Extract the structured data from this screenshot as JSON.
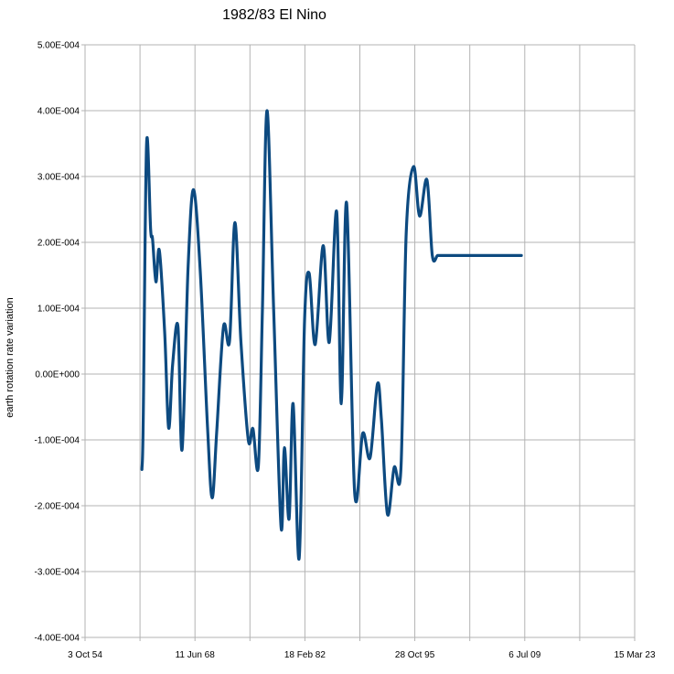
{
  "chart_data": {
    "type": "line",
    "title": "1982/83 El Nino",
    "xlabel": "",
    "ylabel": "earth rotation rate variation",
    "x_ticks": [
      "3 Oct 54",
      "11 Jun 68",
      "18 Feb 82",
      "28 Oct 95",
      "6 Jul 09",
      "15 Mar 23"
    ],
    "x_tick_dates": [
      "1954-10-03",
      "1968-06-11",
      "1982-02-18",
      "1995-10-28",
      "2009-07-06",
      "2023-03-15"
    ],
    "y_ticks": [
      "5.00E-004",
      "4.00E-004",
      "3.00E-004",
      "2.00E-004",
      "1.00E-004",
      "0.00E+000",
      "-1.00E-004",
      "-2.00E-004",
      "-3.00E-004",
      "-4.00E-004"
    ],
    "xlim": [
      "1954-10-03",
      "2023-03-15"
    ],
    "ylim": [
      -0.0004,
      0.0005
    ],
    "grid": true,
    "line_color": "#0d4a80",
    "series": [
      {
        "x": [
          "1961-11-01",
          "1962-01-01",
          "1962-06-01",
          "1962-12-01",
          "1963-03-01",
          "1963-08-01",
          "1964-01-01",
          "1964-09-01",
          "1965-03-01",
          "1965-09-01",
          "1966-05-01",
          "1966-11-01",
          "1967-08-01",
          "1968-04-01",
          "1969-02-01",
          "1970-01-01",
          "1970-08-01",
          "1971-03-01",
          "1972-01-01",
          "1972-10-01",
          "1973-06-01",
          "1974-03-01",
          "1975-02-01",
          "1975-09-01",
          "1976-05-01",
          "1976-11-01",
          "1977-06-01",
          "1978-04-01",
          "1979-03-01",
          "1979-08-01",
          "1980-03-01",
          "1980-09-01",
          "1981-06-01",
          "1982-02-01",
          "1982-09-01",
          "1983-06-01",
          "1984-06-01",
          "1985-03-01",
          "1986-02-01",
          "1986-09-01",
          "1987-05-01",
          "1988-05-01",
          "1989-05-01",
          "1990-04-01",
          "1991-03-01",
          "1991-09-01",
          "1992-06-01",
          "1993-04-01",
          "1994-02-01",
          "1994-10-01",
          "1995-09-01",
          "1996-06-01",
          "1997-05-01",
          "1998-01-01",
          "1998-09-01",
          "1999-05-01",
          "2000-05-01",
          "2001-03-01",
          "2002-04-01",
          "2003-04-01",
          "2004-01-01",
          "2004-09-01",
          "2005-10-01",
          "2006-07-01",
          "2007-01-01",
          "2007-09-01",
          "2008-05-01",
          "2008-10-01",
          "2009-02-01"
        ],
        "values": [
          -0.000145,
          -7e-05,
          0.00035,
          0.00022,
          0.000205,
          0.00014,
          0.000188,
          6.5e-05,
          -8.2e-05,
          1.5e-05,
          7.2e-05,
          -0.000115,
          0.00016,
          0.00028,
          0.00016,
          -8e-05,
          -0.000188,
          -8.5e-05,
          7.2e-05,
          5e-05,
          0.00023,
          5e-05,
          -0.0001,
          -8.3e-05,
          -0.00014,
          9.5e-05,
          0.0004,
          9.5e-05,
          -0.000232,
          -0.000112,
          -0.00022,
          -4.5e-05,
          -0.00028,
          8e-05,
          0.000153,
          4.5e-05,
          0.000195,
          4.8e-05,
          0.000247,
          -4.5e-05,
          0.00026,
          -0.00018,
          -9e-05,
          -0.000127,
          -1.5e-05,
          -7e-05,
          -0.000213,
          -0.000142,
          -0.000144,
          0.000215,
          0.000315,
          0.00024,
          0.000295,
          0.00018,
          0.00018,
          0.00018,
          0.00018,
          0.00018,
          0.00018,
          0.00018,
          0.00018,
          0.00018,
          0.00018,
          0.00018,
          0.00018,
          0.00018,
          0.00018,
          0.00018,
          0.00018
        ]
      }
    ]
  }
}
